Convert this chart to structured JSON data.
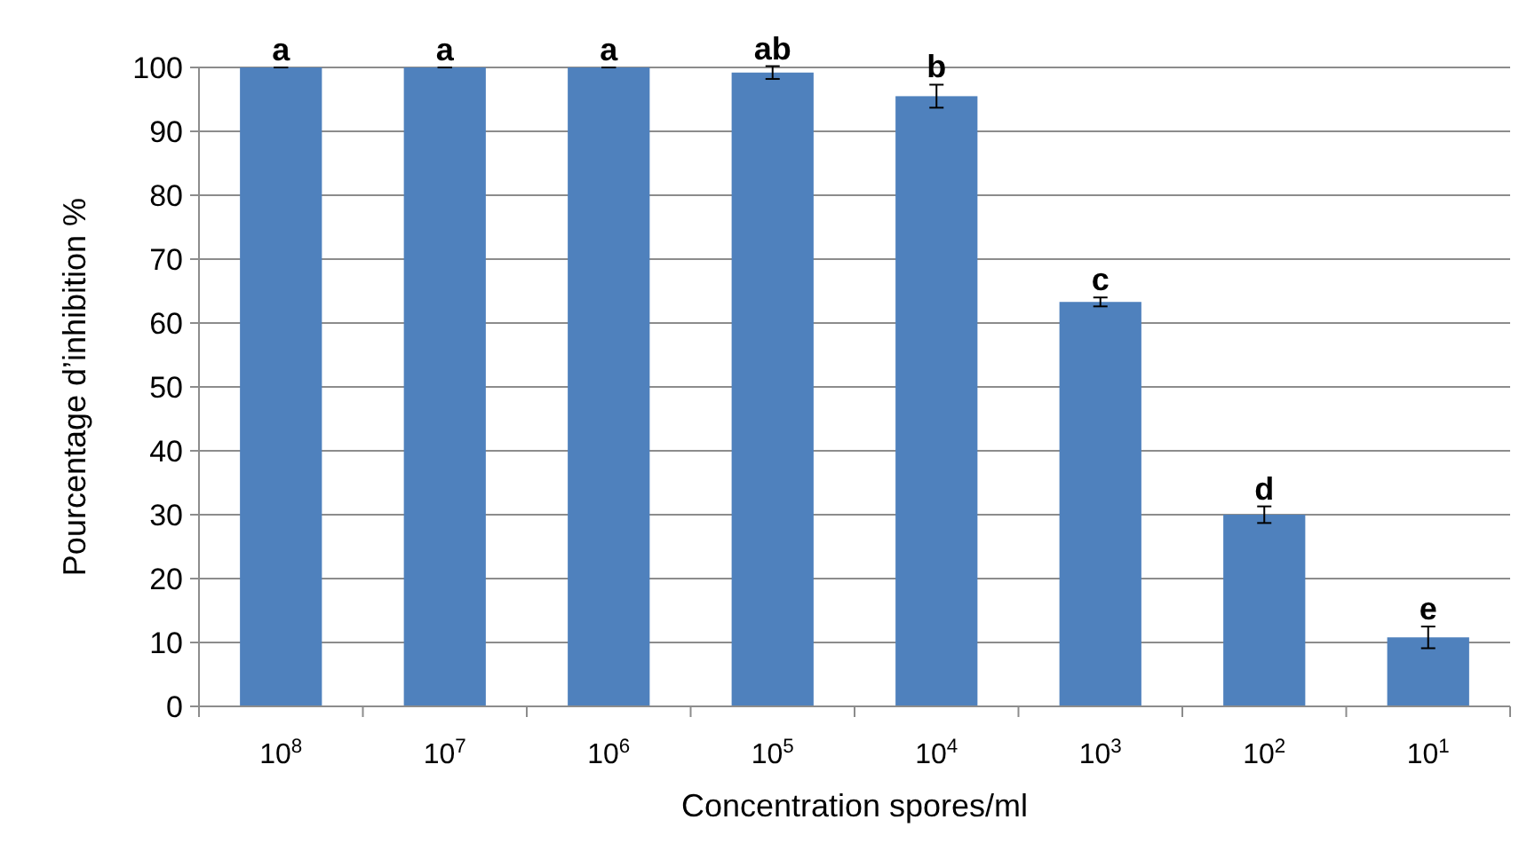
{
  "chart_data": {
    "type": "bar",
    "xlabel": "Concentration spores/ml",
    "ylabel": "Pourcentage d’inhibition %",
    "categories": [
      "10$^{8}$",
      "10$^{7}$",
      "10$^{6}$",
      "10$^{5}$",
      "10$^{4}$",
      "10$^{3}$",
      "10$^{2}$",
      "10$^{1}$"
    ],
    "values": [
      100,
      100,
      100,
      99.2,
      95.5,
      63.3,
      30,
      10.8
    ],
    "errors": [
      0,
      0,
      0,
      1,
      1.8,
      0.7,
      1.3,
      1.7
    ],
    "color": "#4f81bd",
    "ylim": [
      0,
      100
    ],
    "yticks": [
      0,
      10,
      20,
      30,
      40,
      50,
      60,
      70,
      80,
      90,
      100
    ],
    "grid": "y",
    "annotations": [
      {
        "text": "a",
        "x": "10$^{8}$",
        "y": 100
      },
      {
        "text": "a",
        "x": "10$^{7}$",
        "y": 100
      },
      {
        "text": "a",
        "x": "10$^{6}$",
        "y": 100
      },
      {
        "text": "ab",
        "x": "10$^{5}$",
        "y": 100.2
      },
      {
        "text": "b",
        "x": "10$^{4}$",
        "y": 97.3
      },
      {
        "text": "c",
        "x": "10$^{3}$",
        "y": 64
      },
      {
        "text": "d",
        "x": "10$^{2}$",
        "y": 31.3
      },
      {
        "text": "e",
        "x": "10$^{1}$",
        "y": 12.5
      }
    ]
  }
}
